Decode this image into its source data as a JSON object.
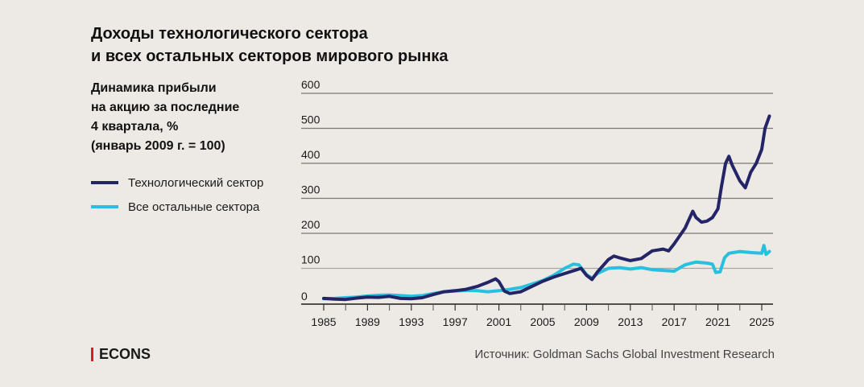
{
  "header": {
    "title_line1": "Доходы технологического сектора",
    "title_line2": "и всех остальных секторов мирового рынка"
  },
  "subtitle": {
    "line1": "Динамика прибыли",
    "line2": "на акцию за последние",
    "line3": "4 квартала, %",
    "line4": "(январь 2009 г. = 100)"
  },
  "footer": {
    "brand": "ECONS",
    "source": "Источник: Goldman Sachs Global Investment Research"
  },
  "colors": {
    "tech": "#232566",
    "others": "#27c0de",
    "grid": "#8a8680",
    "brand_accent": "#d81e1e"
  },
  "chart_data": {
    "type": "line",
    "title": "Доходы технологического сектора и всех остальных секторов мирового рынка",
    "ylabel": "Динамика прибыли на акцию за последние 4 квартала, % (январь 2009 г. = 100)",
    "xlabel": "",
    "xlim": [
      1985,
      2026
    ],
    "ylim": [
      0,
      600
    ],
    "x_ticks": [
      1985,
      1989,
      1993,
      1997,
      2001,
      2005,
      2009,
      2013,
      2017,
      2021,
      2025
    ],
    "minor_ticks": [
      1987,
      1991,
      1995,
      1999,
      2003,
      2007,
      2011,
      2015,
      2019,
      2023
    ],
    "y_ticks": [
      0,
      100,
      200,
      300,
      400,
      500,
      600
    ],
    "grid": true,
    "legend_position": "left",
    "series": [
      {
        "name": "Технологический сектор",
        "color": "#232566",
        "points": [
          [
            1985,
            14
          ],
          [
            1986,
            12
          ],
          [
            1987,
            11
          ],
          [
            1988,
            15
          ],
          [
            1989,
            18
          ],
          [
            1990,
            17
          ],
          [
            1991,
            20
          ],
          [
            1992,
            14
          ],
          [
            1993,
            13
          ],
          [
            1994,
            16
          ],
          [
            1995,
            25
          ],
          [
            1996,
            33
          ],
          [
            1997,
            36
          ],
          [
            1998,
            40
          ],
          [
            1999,
            48
          ],
          [
            2000,
            60
          ],
          [
            2000.7,
            70
          ],
          [
            2001,
            62
          ],
          [
            2001.5,
            35
          ],
          [
            2002,
            28
          ],
          [
            2003,
            33
          ],
          [
            2004,
            48
          ],
          [
            2005,
            63
          ],
          [
            2006,
            75
          ],
          [
            2007,
            85
          ],
          [
            2008,
            95
          ],
          [
            2008.5,
            100
          ],
          [
            2009,
            80
          ],
          [
            2009.5,
            68
          ],
          [
            2010,
            90
          ],
          [
            2011,
            125
          ],
          [
            2011.5,
            135
          ],
          [
            2012,
            130
          ],
          [
            2013,
            122
          ],
          [
            2014,
            128
          ],
          [
            2015,
            150
          ],
          [
            2016,
            155
          ],
          [
            2016.5,
            150
          ],
          [
            2017,
            170
          ],
          [
            2018,
            215
          ],
          [
            2018.7,
            263
          ],
          [
            2019,
            245
          ],
          [
            2019.5,
            232
          ],
          [
            2020,
            235
          ],
          [
            2020.5,
            245
          ],
          [
            2021,
            270
          ],
          [
            2021.3,
            330
          ],
          [
            2021.7,
            400
          ],
          [
            2022,
            420
          ],
          [
            2022.3,
            395
          ],
          [
            2023,
            350
          ],
          [
            2023.5,
            330
          ],
          [
            2024,
            375
          ],
          [
            2024.5,
            400
          ],
          [
            2025,
            440
          ],
          [
            2025.3,
            500
          ],
          [
            2025.7,
            535
          ]
        ]
      },
      {
        "name": "Все остальные сектора",
        "color": "#27c0de",
        "points": [
          [
            1985,
            13
          ],
          [
            1986,
            14
          ],
          [
            1987,
            16
          ],
          [
            1988,
            18
          ],
          [
            1989,
            21
          ],
          [
            1990,
            23
          ],
          [
            1991,
            24
          ],
          [
            1992,
            22
          ],
          [
            1993,
            20
          ],
          [
            1994,
            22
          ],
          [
            1995,
            28
          ],
          [
            1996,
            33
          ],
          [
            1997,
            35
          ],
          [
            1998,
            37
          ],
          [
            1999,
            36
          ],
          [
            2000,
            33
          ],
          [
            2001,
            36
          ],
          [
            2002,
            40
          ],
          [
            2003,
            45
          ],
          [
            2004,
            55
          ],
          [
            2005,
            65
          ],
          [
            2006,
            80
          ],
          [
            2007,
            100
          ],
          [
            2007.8,
            112
          ],
          [
            2008.3,
            110
          ],
          [
            2009,
            82
          ],
          [
            2009.5,
            72
          ],
          [
            2010,
            85
          ],
          [
            2011,
            100
          ],
          [
            2012,
            102
          ],
          [
            2013,
            98
          ],
          [
            2014,
            102
          ],
          [
            2015,
            96
          ],
          [
            2016,
            94
          ],
          [
            2017,
            92
          ],
          [
            2018,
            110
          ],
          [
            2019,
            118
          ],
          [
            2020,
            115
          ],
          [
            2020.5,
            112
          ],
          [
            2020.8,
            88
          ],
          [
            2021.2,
            90
          ],
          [
            2021.6,
            130
          ],
          [
            2022,
            143
          ],
          [
            2023,
            148
          ],
          [
            2024,
            145
          ],
          [
            2025,
            143
          ],
          [
            2025.2,
            165
          ],
          [
            2025.4,
            140
          ],
          [
            2025.7,
            148
          ]
        ]
      }
    ]
  }
}
